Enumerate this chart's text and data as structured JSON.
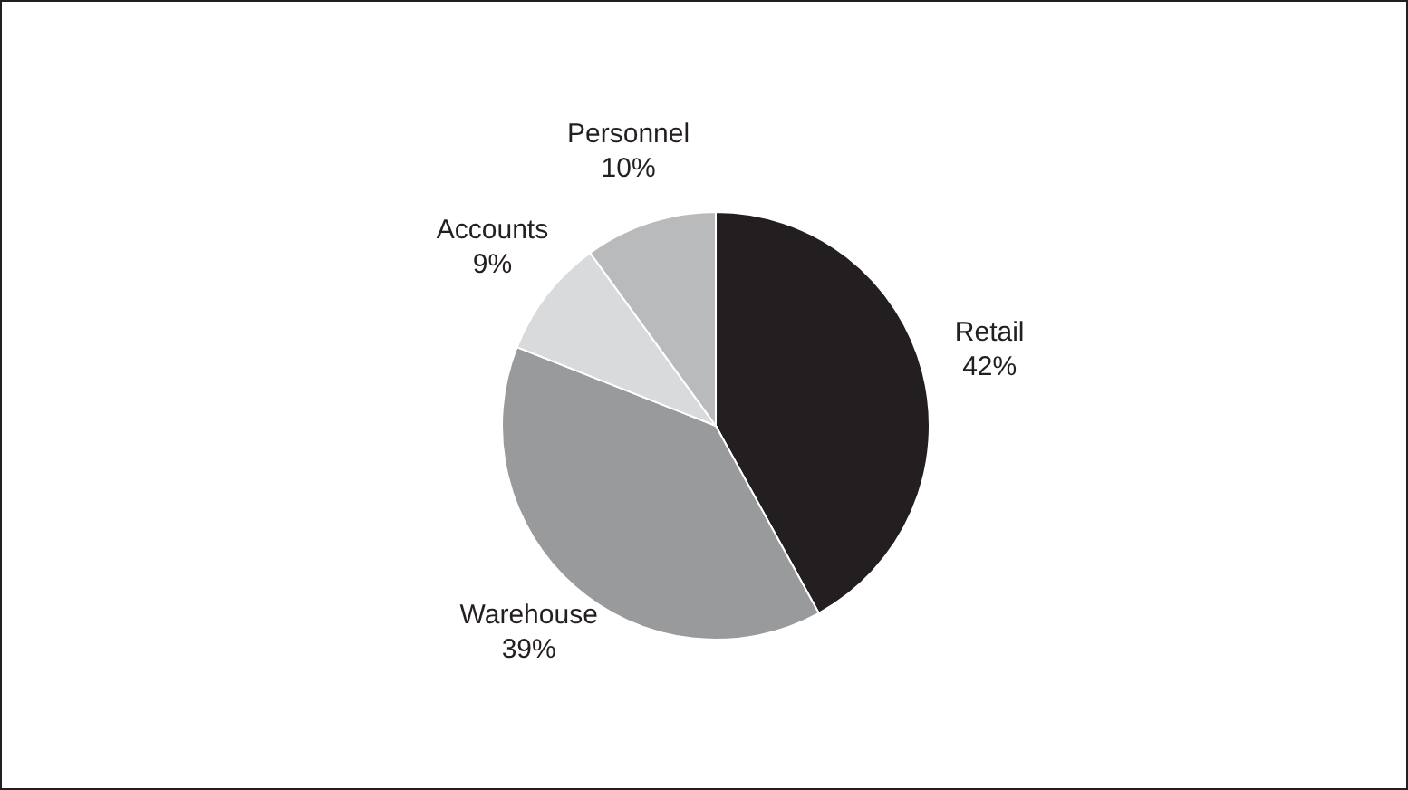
{
  "chart_data": {
    "type": "pie",
    "categories": [
      "Retail",
      "Warehouse",
      "Accounts",
      "Personnel"
    ],
    "values": [
      42,
      39,
      9,
      10
    ],
    "colors": [
      "#231f20",
      "#999a9c",
      "#d9dadb",
      "#b9babc"
    ],
    "value_labels": [
      "42%",
      "39%",
      "9%",
      "10%"
    ]
  }
}
